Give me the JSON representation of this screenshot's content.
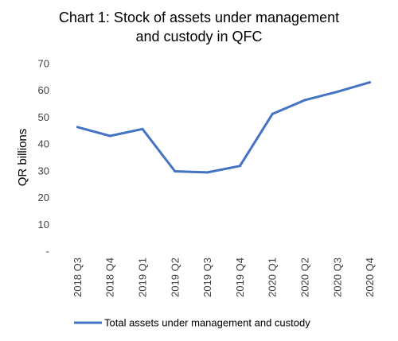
{
  "chart_data": {
    "type": "line",
    "title_line1": "Chart 1: Stock of assets under management",
    "title_line2": "and custody in QFC",
    "ylabel": "QR billions",
    "xlabel": "",
    "categories": [
      "2018 Q3",
      "2018 Q4",
      "2019 Q1",
      "2019 Q2",
      "2019 Q3",
      "2019 Q4",
      "2020 Q1",
      "2020 Q2",
      "2020 Q3",
      "2020 Q4"
    ],
    "yticks": [
      "-",
      "10",
      "20",
      "30",
      "40",
      "50",
      "60",
      "70"
    ],
    "ylim": [
      0,
      70
    ],
    "grid": false,
    "legend_position": "bottom",
    "series": [
      {
        "name": "Total assets under management and custody",
        "color": "#4472C4",
        "values": [
          46.3,
          43.0,
          45.6,
          29.8,
          29.4,
          31.8,
          51.2,
          56.4,
          59.5,
          63.0
        ]
      }
    ]
  }
}
